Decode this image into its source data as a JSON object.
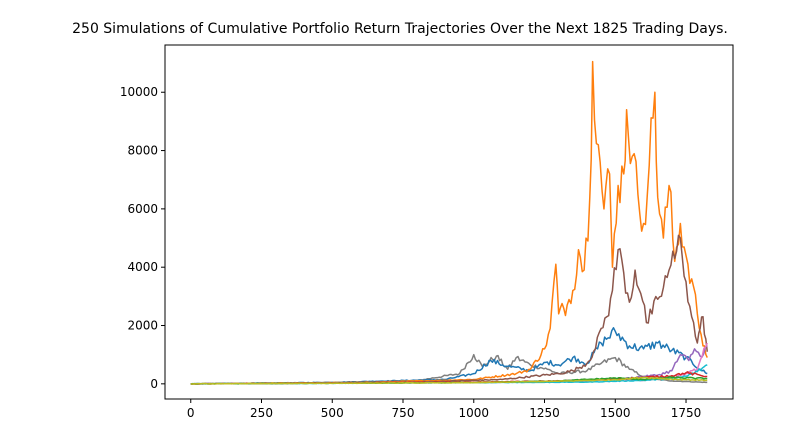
{
  "chart_data": {
    "type": "line",
    "title": "250 Simulations of Cumulative Portfolio Return Trajectories Over the Next 1825 Trading Days.",
    "xlabel": "",
    "ylabel": "",
    "xlim": [
      -91,
      1916
    ],
    "ylim": [
      -520,
      11620
    ],
    "x_ticks": [
      0,
      250,
      500,
      750,
      1000,
      1250,
      1500,
      1750
    ],
    "y_ticks": [
      0,
      2000,
      4000,
      6000,
      8000,
      10000
    ],
    "grid": false,
    "legend": "none",
    "series_count_printed": 250,
    "colors": [
      "#1f77b4",
      "#ff7f0e",
      "#2ca02c",
      "#d62728",
      "#9467bd",
      "#8c564b",
      "#e377c2",
      "#7f7f7f",
      "#bcbd22",
      "#17becf"
    ],
    "series": [
      {
        "color": "#7f7f7f",
        "points": [
          [
            0,
            0
          ],
          [
            500,
            40
          ],
          [
            800,
            110
          ],
          [
            950,
            350
          ],
          [
            1000,
            1000
          ],
          [
            1030,
            600
          ],
          [
            1080,
            950
          ],
          [
            1120,
            500
          ],
          [
            1150,
            900
          ],
          [
            1200,
            650
          ],
          [
            1260,
            500
          ],
          [
            1300,
            350
          ],
          [
            1400,
            450
          ],
          [
            1450,
            700
          ],
          [
            1500,
            900
          ],
          [
            1550,
            500
          ],
          [
            1600,
            250
          ],
          [
            1650,
            150
          ],
          [
            1700,
            100
          ],
          [
            1750,
            80
          ],
          [
            1825,
            50
          ]
        ]
      },
      {
        "color": "#1f77b4",
        "points": [
          [
            0,
            0
          ],
          [
            500,
            50
          ],
          [
            900,
            150
          ],
          [
            1000,
            350
          ],
          [
            1060,
            800
          ],
          [
            1120,
            600
          ],
          [
            1200,
            450
          ],
          [
            1260,
            750
          ],
          [
            1300,
            650
          ],
          [
            1350,
            900
          ],
          [
            1400,
            700
          ],
          [
            1450,
            1400
          ],
          [
            1500,
            1800
          ],
          [
            1550,
            1300
          ],
          [
            1600,
            1200
          ],
          [
            1650,
            1400
          ],
          [
            1700,
            1150
          ],
          [
            1750,
            900
          ],
          [
            1800,
            500
          ],
          [
            1825,
            350
          ]
        ]
      },
      {
        "color": "#ff7f0e",
        "points": [
          [
            0,
            0
          ],
          [
            600,
            50
          ],
          [
            1000,
            150
          ],
          [
            1150,
            350
          ],
          [
            1200,
            500
          ],
          [
            1250,
            1200
          ],
          [
            1270,
            1900
          ],
          [
            1290,
            4100
          ],
          [
            1300,
            2400
          ],
          [
            1330,
            2700
          ],
          [
            1350,
            3200
          ],
          [
            1370,
            4600
          ],
          [
            1390,
            3900
          ],
          [
            1410,
            6400
          ],
          [
            1420,
            11050
          ],
          [
            1440,
            8200
          ],
          [
            1460,
            6000
          ],
          [
            1480,
            7200
          ],
          [
            1490,
            4000
          ],
          [
            1510,
            6800
          ],
          [
            1530,
            7200
          ],
          [
            1540,
            9400
          ],
          [
            1560,
            7800
          ],
          [
            1580,
            6500
          ],
          [
            1600,
            5500
          ],
          [
            1620,
            7500
          ],
          [
            1640,
            10000
          ],
          [
            1650,
            6400
          ],
          [
            1670,
            5000
          ],
          [
            1690,
            6800
          ],
          [
            1710,
            4200
          ],
          [
            1730,
            5500
          ],
          [
            1750,
            4400
          ],
          [
            1770,
            3600
          ],
          [
            1790,
            2400
          ],
          [
            1810,
            1300
          ],
          [
            1825,
            900
          ]
        ]
      },
      {
        "color": "#8c564b",
        "points": [
          [
            0,
            0
          ],
          [
            800,
            60
          ],
          [
            1100,
            150
          ],
          [
            1300,
            350
          ],
          [
            1350,
            450
          ],
          [
            1400,
            700
          ],
          [
            1430,
            1200
          ],
          [
            1450,
            1900
          ],
          [
            1470,
            2300
          ],
          [
            1490,
            3200
          ],
          [
            1510,
            4600
          ],
          [
            1530,
            3800
          ],
          [
            1550,
            2800
          ],
          [
            1570,
            3900
          ],
          [
            1590,
            3100
          ],
          [
            1610,
            2100
          ],
          [
            1630,
            2400
          ],
          [
            1650,
            2900
          ],
          [
            1670,
            3300
          ],
          [
            1690,
            3900
          ],
          [
            1710,
            4300
          ],
          [
            1730,
            5000
          ],
          [
            1750,
            3500
          ],
          [
            1770,
            2300
          ],
          [
            1790,
            1400
          ],
          [
            1800,
            1900
          ],
          [
            1810,
            2300
          ],
          [
            1825,
            1100
          ]
        ]
      },
      {
        "color": "#9467bd",
        "points": [
          [
            0,
            0
          ],
          [
            1200,
            60
          ],
          [
            1500,
            150
          ],
          [
            1600,
            250
          ],
          [
            1650,
            300
          ],
          [
            1700,
            450
          ],
          [
            1730,
            1000
          ],
          [
            1760,
            800
          ],
          [
            1780,
            1200
          ],
          [
            1800,
            950
          ],
          [
            1825,
            1300
          ]
        ]
      },
      {
        "color": "#e377c2",
        "points": [
          [
            0,
            0
          ],
          [
            1300,
            70
          ],
          [
            1500,
            160
          ],
          [
            1600,
            120
          ],
          [
            1700,
            250
          ],
          [
            1750,
            350
          ],
          [
            1790,
            500
          ],
          [
            1825,
            1400
          ]
        ]
      },
      {
        "color": "#17becf",
        "points": [
          [
            0,
            0
          ],
          [
            1400,
            60
          ],
          [
            1600,
            120
          ],
          [
            1700,
            180
          ],
          [
            1750,
            260
          ],
          [
            1790,
            420
          ],
          [
            1825,
            650
          ]
        ]
      },
      {
        "color": "#d62728",
        "points": [
          [
            0,
            0
          ],
          [
            1000,
            60
          ],
          [
            1300,
            100
          ],
          [
            1500,
            160
          ],
          [
            1600,
            220
          ],
          [
            1700,
            280
          ],
          [
            1750,
            380
          ],
          [
            1825,
            250
          ]
        ]
      },
      {
        "color": "#2ca02c",
        "points": [
          [
            0,
            0
          ],
          [
            1000,
            40
          ],
          [
            1300,
            100
          ],
          [
            1500,
            200
          ],
          [
            1600,
            150
          ],
          [
            1700,
            220
          ],
          [
            1825,
            180
          ]
        ]
      },
      {
        "color": "#bcbd22",
        "points": [
          [
            0,
            0
          ],
          [
            1000,
            40
          ],
          [
            1300,
            90
          ],
          [
            1500,
            140
          ],
          [
            1600,
            220
          ],
          [
            1700,
            160
          ],
          [
            1825,
            120
          ]
        ]
      }
    ]
  }
}
